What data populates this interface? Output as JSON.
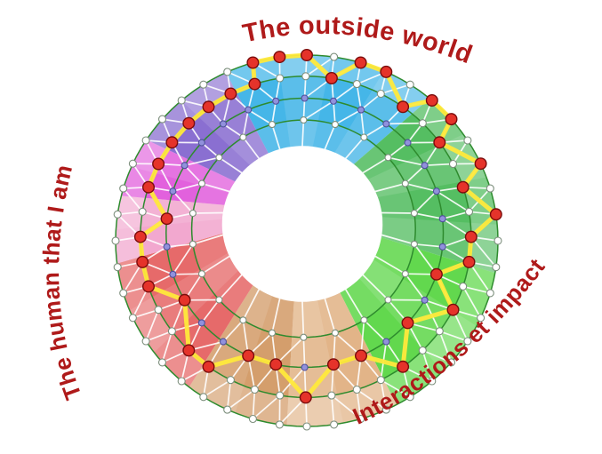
{
  "labels": {
    "top": "The outside world",
    "left": "The human that I am",
    "bottom_right": "Interactions et impact"
  },
  "palette": {
    "label_color": "#AF1A1A",
    "ring_line": "#2E8B2E",
    "mesh_line": "#FFFFFF",
    "highlight_line": "#FFE93B",
    "node_red_fill": "#E5332A",
    "node_red_stroke": "#7A0C0C",
    "node_purple_fill": "#9191DC",
    "node_purple_stroke": "#50509B",
    "node_white_fill": "#FFFFFF",
    "node_white_stroke": "#7D8F7D"
  },
  "sectors": [
    {
      "id": "blue",
      "color": "#45B6E8",
      "start": -25,
      "end": 40
    },
    {
      "id": "green-a",
      "color": "#55BE62",
      "start": 40,
      "end": 100
    },
    {
      "id": "green-b",
      "color": "#62D84E",
      "start": 100,
      "end": 152
    },
    {
      "id": "tan-a",
      "color": "#E2B488",
      "start": 152,
      "end": 186
    },
    {
      "id": "tan-b",
      "color": "#D49E6C",
      "start": 186,
      "end": 218
    },
    {
      "id": "red",
      "color": "#E66A6A",
      "start": 218,
      "end": 263
    },
    {
      "id": "pink-light",
      "color": "#F2A8CF",
      "start": 263,
      "end": 284
    },
    {
      "id": "pink-vivid",
      "color": "#E261DD",
      "start": 284,
      "end": 303
    },
    {
      "id": "purple",
      "color": "#8A6FD1",
      "start": 303,
      "end": 335
    }
  ],
  "rings": [
    {
      "frac": 1.0,
      "count": 44,
      "style": "white",
      "r": 4
    },
    {
      "frac": 0.865,
      "count": 40,
      "style": "white",
      "r": 4
    },
    {
      "frac": 0.725,
      "count": 30,
      "style": "purple",
      "r": 3.5
    },
    {
      "frac": 0.585,
      "count": 22,
      "style": "white",
      "r": 3.5
    }
  ],
  "highlight_closed": true,
  "highlight_path": [
    [
      1,
      38
    ],
    [
      0,
      42
    ],
    [
      0,
      43
    ],
    [
      0,
      0
    ],
    [
      1,
      1
    ],
    [
      0,
      2
    ],
    [
      0,
      3
    ],
    [
      1,
      4
    ],
    [
      0,
      5
    ],
    [
      0,
      6
    ],
    [
      1,
      6
    ],
    [
      0,
      8
    ],
    [
      1,
      8
    ],
    [
      0,
      10
    ],
    [
      1,
      10
    ],
    [
      1,
      11
    ],
    [
      2,
      9
    ],
    [
      1,
      13
    ],
    [
      2,
      11
    ],
    [
      1,
      16
    ],
    [
      2,
      13
    ],
    [
      2,
      14
    ],
    [
      1,
      20
    ],
    [
      2,
      16
    ],
    [
      2,
      17
    ],
    [
      1,
      24
    ],
    [
      1,
      25
    ],
    [
      2,
      20
    ],
    [
      1,
      28
    ],
    [
      1,
      29
    ],
    [
      1,
      30
    ],
    [
      2,
      23
    ],
    [
      1,
      32
    ],
    [
      1,
      33
    ],
    [
      1,
      34
    ],
    [
      1,
      35
    ],
    [
      1,
      36
    ],
    [
      1,
      37
    ]
  ]
}
